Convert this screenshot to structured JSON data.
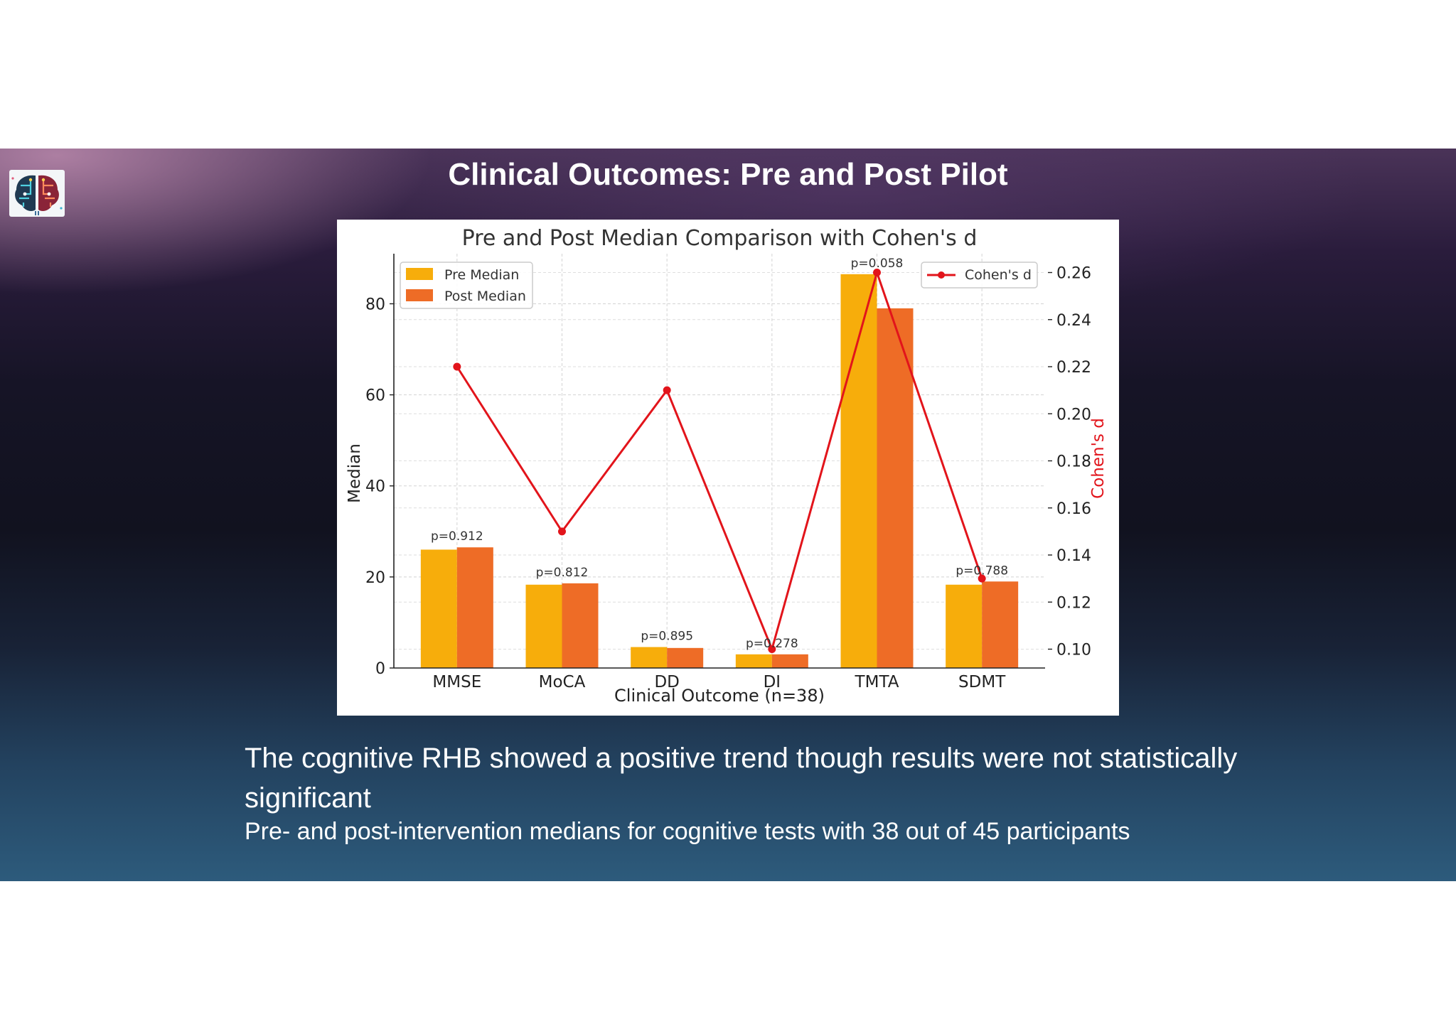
{
  "slide": {
    "title": "Clinical Outcomes: Pre and Post Pilot",
    "summary": "The cognitive RHB showed a positive trend though results were not statistically significant",
    "detail": "Pre- and post-intervention medians for cognitive tests with 38 out of 45 participants",
    "logo_icon": "brain-circuit-logo"
  },
  "colors": {
    "pre": "#F7AD0B",
    "post": "#EE6C26",
    "cohen": "#E2141B",
    "background_top": "#4a3358",
    "background_bottom": "#2d5b7c"
  },
  "chart_data": {
    "type": "bar",
    "title": "Pre and Post Median Comparison with Cohen's d",
    "xlabel": "Clinical Outcome (n=38)",
    "ylabel": "Median",
    "y2label": "Cohen's d",
    "categories": [
      "MMSE",
      "MoCA",
      "DD",
      "DI",
      "TMTA",
      "SDMT"
    ],
    "series": [
      {
        "name": "Pre Median",
        "type": "bar",
        "axis": "left",
        "values": [
          26,
          18.3,
          4.6,
          3,
          86.5,
          18.3
        ]
      },
      {
        "name": "Post Median",
        "type": "bar",
        "axis": "left",
        "values": [
          26.5,
          18.6,
          4.4,
          3,
          79,
          19
        ]
      },
      {
        "name": "Cohen's d",
        "type": "line",
        "axis": "right",
        "values": [
          0.22,
          0.15,
          0.21,
          0.1,
          0.26,
          0.13
        ]
      }
    ],
    "p_values": [
      "p=0.912",
      "p=0.812",
      "p=0.895",
      "p=0.278",
      "p=0.058",
      "p=0.788"
    ],
    "ylim": [
      0,
      91
    ],
    "yticks": [
      0,
      20,
      40,
      60,
      80
    ],
    "y2lim": [
      0.092,
      0.268
    ],
    "y2ticks": [
      "0.10",
      "0.12",
      "0.14",
      "0.16",
      "0.18",
      "0.20",
      "0.22",
      "0.24",
      "0.26"
    ],
    "grid": true,
    "legend_left": "upper-left",
    "legend_right": "upper-right"
  }
}
